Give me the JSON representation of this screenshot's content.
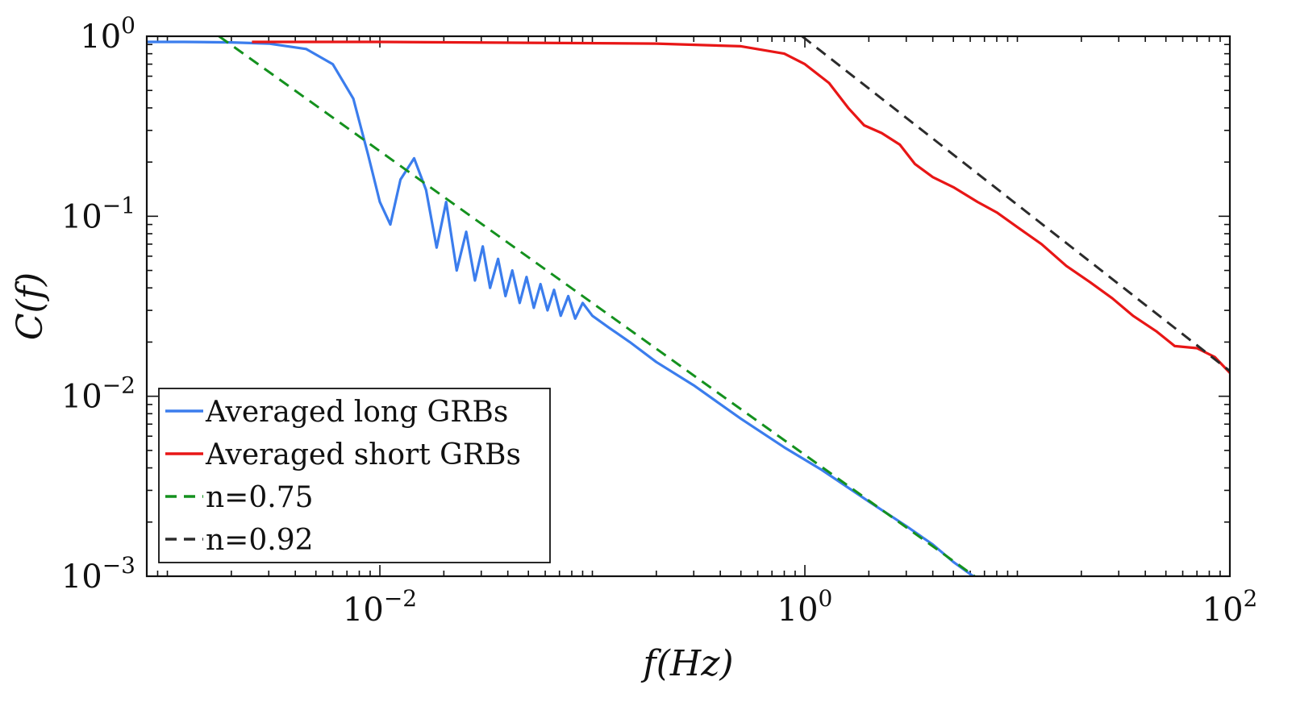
{
  "chart_data": {
    "type": "line",
    "title": "",
    "xlabel": "f(Hz)",
    "ylabel": "C(f)",
    "x_scale": "log",
    "y_scale": "log",
    "xlim": [
      0.0008,
      100
    ],
    "ylim": [
      0.001,
      1
    ],
    "x_ticks": [
      {
        "value": 0.01,
        "base": "10",
        "exp": "−2"
      },
      {
        "value": 1,
        "base": "10",
        "exp": "0"
      },
      {
        "value": 100,
        "base": "10",
        "exp": "2"
      }
    ],
    "y_ticks": [
      {
        "value": 1,
        "base": "10",
        "exp": "0"
      },
      {
        "value": 0.1,
        "base": "10",
        "exp": "−1"
      },
      {
        "value": 0.01,
        "base": "10",
        "exp": "−2"
      },
      {
        "value": 0.001,
        "base": "10",
        "exp": "−3"
      }
    ],
    "grid": false,
    "legend_position": "bottom-left",
    "series": [
      {
        "name": "Averaged long GRBs",
        "color": "#3b7ded",
        "style": "solid",
        "x": [
          0.0008,
          0.0012,
          0.002,
          0.003,
          0.0045,
          0.006,
          0.0075,
          0.0088,
          0.01,
          0.0112,
          0.0125,
          0.0145,
          0.0165,
          0.0185,
          0.0205,
          0.023,
          0.0255,
          0.028,
          0.0305,
          0.033,
          0.036,
          0.039,
          0.042,
          0.0455,
          0.049,
          0.053,
          0.057,
          0.0615,
          0.066,
          0.071,
          0.077,
          0.083,
          0.09,
          0.1,
          0.12,
          0.15,
          0.2,
          0.3,
          0.5,
          0.8,
          1.2,
          2,
          3,
          4,
          5,
          6.2
        ],
        "y": [
          0.93,
          0.93,
          0.925,
          0.91,
          0.85,
          0.7,
          0.45,
          0.22,
          0.12,
          0.09,
          0.16,
          0.21,
          0.14,
          0.067,
          0.12,
          0.05,
          0.082,
          0.044,
          0.068,
          0.04,
          0.058,
          0.036,
          0.05,
          0.033,
          0.046,
          0.031,
          0.042,
          0.03,
          0.039,
          0.028,
          0.036,
          0.027,
          0.033,
          0.028,
          0.024,
          0.02,
          0.0155,
          0.0115,
          0.0075,
          0.0052,
          0.0039,
          0.0026,
          0.0019,
          0.0015,
          0.0012,
          0.001
        ]
      },
      {
        "name": "Averaged short GRBs",
        "color": "#e81616",
        "style": "solid",
        "x": [
          0.0025,
          0.01,
          0.05,
          0.2,
          0.5,
          0.8,
          1.0,
          1.3,
          1.6,
          1.9,
          2.3,
          2.8,
          3.3,
          4.0,
          5.0,
          6.5,
          8.0,
          10,
          13,
          17,
          22,
          28,
          35,
          45,
          55,
          70,
          85,
          100
        ],
        "y": [
          0.93,
          0.93,
          0.92,
          0.91,
          0.88,
          0.8,
          0.7,
          0.55,
          0.4,
          0.32,
          0.29,
          0.25,
          0.195,
          0.165,
          0.145,
          0.12,
          0.105,
          0.087,
          0.07,
          0.053,
          0.043,
          0.035,
          0.028,
          0.023,
          0.019,
          0.0185,
          0.0165,
          0.0135
        ]
      },
      {
        "name": "n=0.75",
        "color": "#14911e",
        "style": "dashed",
        "x": [
          0.00175,
          6.3
        ],
        "y": [
          1.0,
          0.001
        ]
      },
      {
        "name": "n=0.92",
        "color": "#2b2b2b",
        "style": "dashed",
        "x": [
          0.97,
          100
        ],
        "y": [
          1.0,
          0.0138
        ]
      }
    ]
  }
}
